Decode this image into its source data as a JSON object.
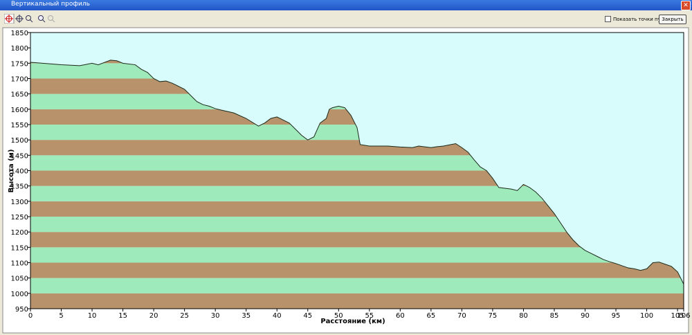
{
  "window": {
    "title": "Вертикальный профиль",
    "checkbox_label": "Показать точки пути",
    "close_button": "Закрыть"
  },
  "chart_data": {
    "type": "area",
    "xlabel": "Расстояние  (км)",
    "ylabel": "Высота (м)",
    "x": [
      0,
      2,
      5,
      8,
      10,
      11,
      13,
      14,
      15,
      17,
      18,
      19,
      20,
      21,
      22,
      23,
      25,
      26,
      27,
      28,
      29,
      30,
      31,
      33,
      35,
      37,
      38,
      39,
      40,
      41,
      42,
      43,
      44,
      45,
      46,
      47,
      48,
      48.5,
      49,
      50,
      51,
      52,
      53,
      53.5,
      55,
      58,
      60,
      62,
      63,
      65,
      66,
      67,
      69,
      70,
      71,
      72,
      73,
      74,
      75,
      76,
      78,
      79,
      80,
      81,
      82,
      83,
      84,
      85,
      86,
      87,
      88,
      89,
      90,
      91,
      92,
      93,
      94,
      95,
      96,
      97,
      98,
      99,
      100,
      101,
      102,
      103,
      104,
      105,
      106
    ],
    "values": [
      1753,
      1750,
      1745,
      1742,
      1750,
      1745,
      1760,
      1758,
      1750,
      1745,
      1730,
      1720,
      1700,
      1690,
      1692,
      1685,
      1665,
      1645,
      1625,
      1615,
      1610,
      1602,
      1597,
      1588,
      1570,
      1545,
      1555,
      1570,
      1575,
      1565,
      1555,
      1535,
      1515,
      1500,
      1510,
      1555,
      1570,
      1600,
      1605,
      1610,
      1605,
      1580,
      1540,
      1485,
      1480,
      1480,
      1477,
      1475,
      1480,
      1475,
      1478,
      1480,
      1488,
      1475,
      1460,
      1435,
      1412,
      1400,
      1375,
      1345,
      1340,
      1335,
      1355,
      1345,
      1330,
      1310,
      1285,
      1260,
      1230,
      1200,
      1175,
      1155,
      1140,
      1130,
      1120,
      1110,
      1103,
      1097,
      1090,
      1083,
      1080,
      1075,
      1080,
      1100,
      1102,
      1095,
      1088,
      1070,
      1030
    ],
    "xlim": [
      0,
      106
    ],
    "ylim": [
      950,
      1850
    ],
    "xticks": [
      0,
      5,
      10,
      15,
      20,
      25,
      30,
      35,
      40,
      45,
      50,
      55,
      60,
      65,
      70,
      75,
      80,
      85,
      90,
      95,
      100,
      105,
      106
    ],
    "yticks": [
      950,
      1000,
      1050,
      1100,
      1150,
      1200,
      1250,
      1300,
      1350,
      1400,
      1450,
      1500,
      1550,
      1600,
      1650,
      1700,
      1750,
      1800,
      1850
    ],
    "line_color": "#1a2a1a",
    "band_colors": [
      "#b8926a",
      "#9feabb"
    ],
    "background": "#d8fbfb"
  }
}
